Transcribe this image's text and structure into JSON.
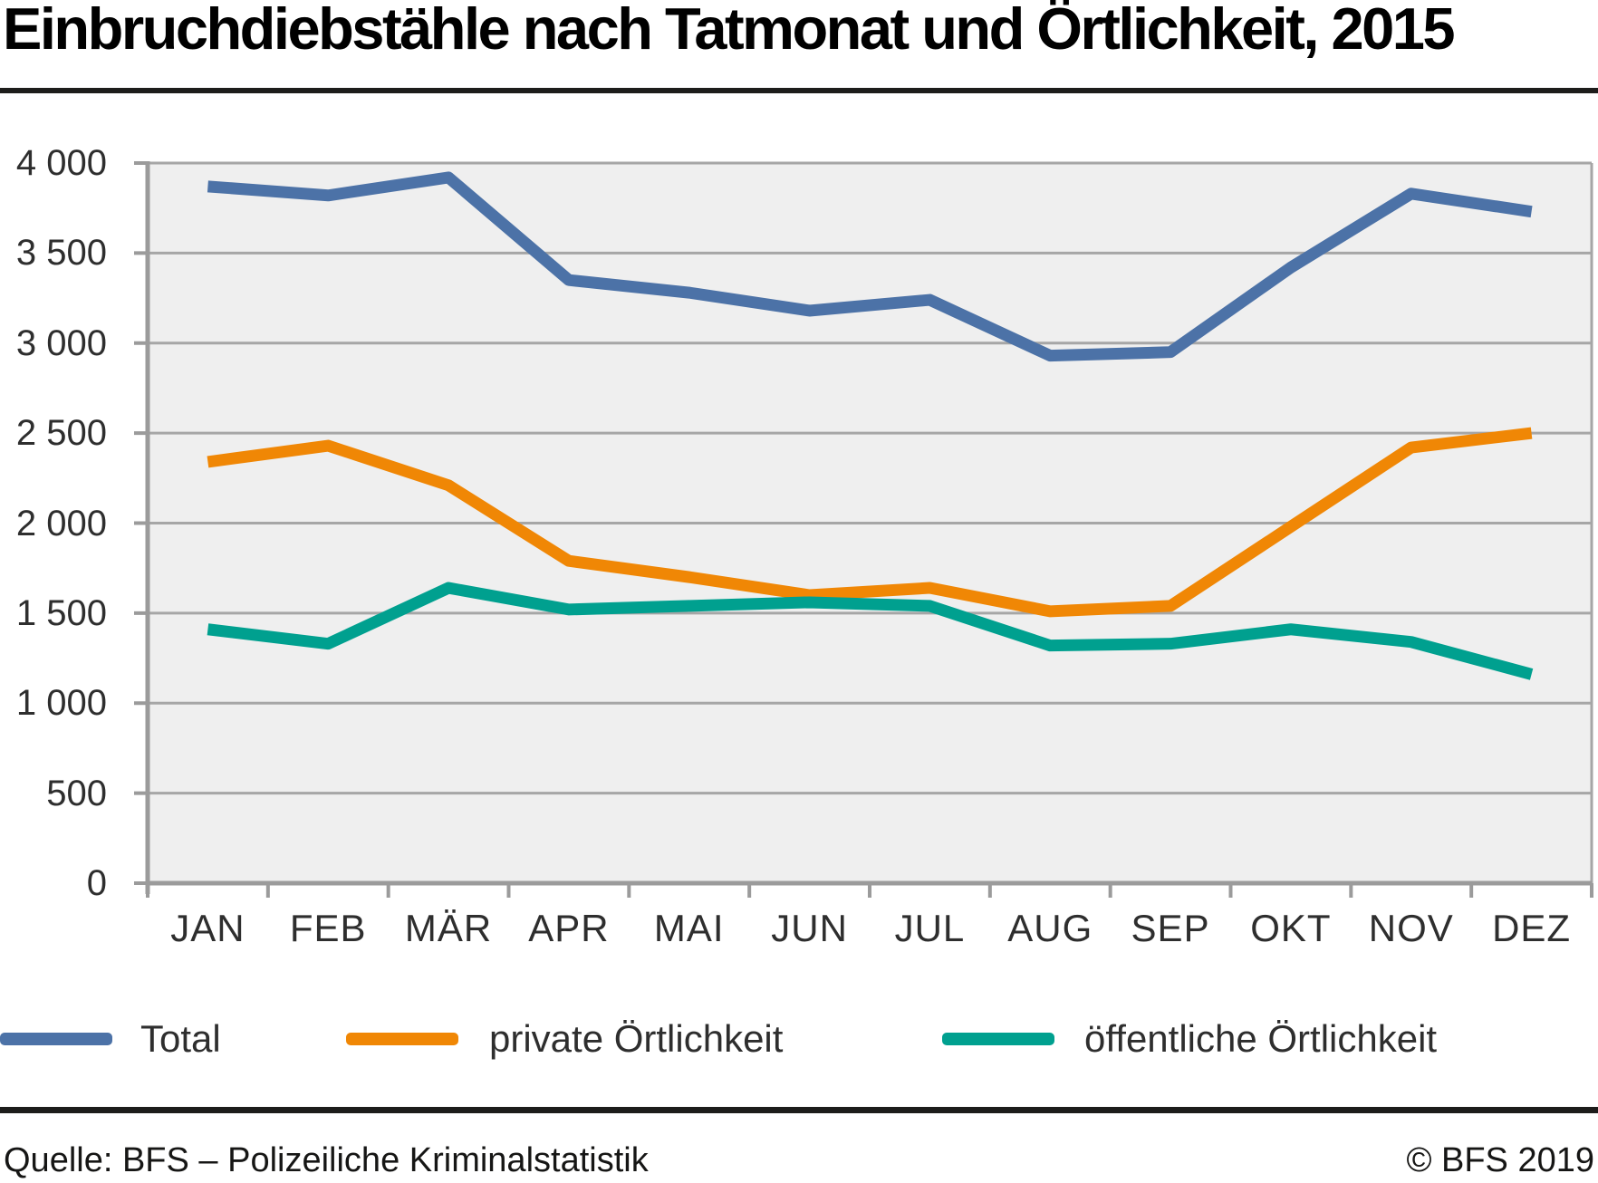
{
  "page": {
    "title": "Einbruchdiebstähle nach Tatmonat und Örtlichkeit, 2015",
    "source": "Quelle: BFS – Polizeiliche Kriminalstatistik",
    "copyright": "© BFS 2019"
  },
  "colors": {
    "total_line": "#4C72A7",
    "private_line": "#F08705",
    "public_line": "#00A08F",
    "grid": "#A6A6A6",
    "axis": "#9B9B9B",
    "plot_background": "#EFEFEF",
    "rule": "#1D1D1B",
    "label_text": "#2E2E2E"
  },
  "chart_data": {
    "type": "line",
    "title": "Einbruchdiebstähle nach Tatmonat und Örtlichkeit, 2015",
    "categories": [
      "JAN",
      "FEB",
      "MÄR",
      "APR",
      "MAI",
      "JUN",
      "JUL",
      "AUG",
      "SEP",
      "OKT",
      "NOV",
      "DEZ"
    ],
    "series": [
      {
        "name": "Total",
        "color": "#4C72A7",
        "values": [
          3870,
          3820,
          3920,
          3350,
          3280,
          3180,
          3240,
          2930,
          2950,
          3420,
          3830,
          3730
        ]
      },
      {
        "name": "private Örtlichkeit",
        "color": "#F08705",
        "values": [
          2340,
          2430,
          2210,
          1790,
          1700,
          1600,
          1640,
          1510,
          1540,
          1980,
          2420,
          2500
        ]
      },
      {
        "name": "öffentliche Örtlichkeit",
        "color": "#00A08F",
        "values": [
          1410,
          1330,
          1640,
          1520,
          1540,
          1560,
          1540,
          1320,
          1330,
          1410,
          1340,
          1160
        ]
      }
    ],
    "xlabel": "",
    "ylabel": "",
    "ylim": [
      0,
      4000
    ],
    "yticks": [
      0,
      500,
      1000,
      1500,
      2000,
      2500,
      3000,
      3500,
      4000
    ],
    "ytick_labels": [
      "0",
      "500",
      "1 000",
      "1 500",
      "2 000",
      "2 500",
      "3 000",
      "3 500",
      "4 000"
    ],
    "grid": true,
    "legend_position": "bottom"
  }
}
